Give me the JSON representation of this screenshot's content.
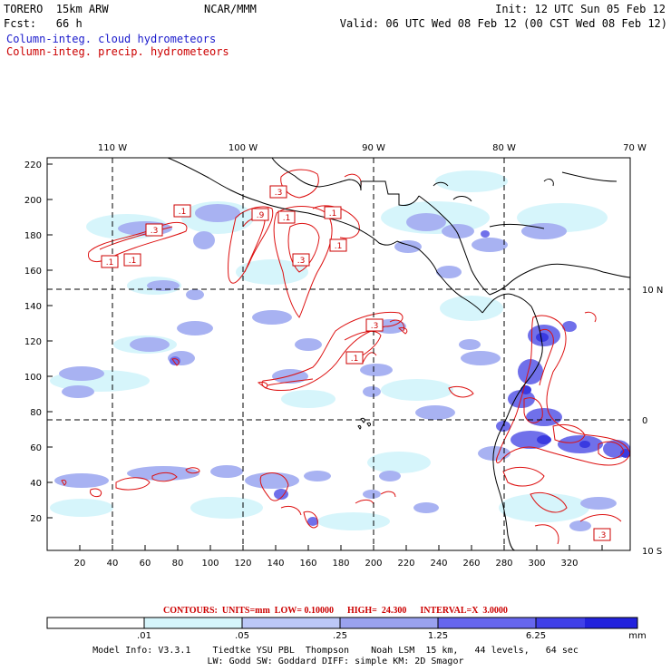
{
  "header": {
    "model": "TORERO  15km ARW",
    "org": "NCAR/MMM",
    "init": "Init: 12 UTC Sun 05 Feb 12",
    "fcst": "Fcst:   66 h",
    "valid": "Valid: 06 UTC Wed 08 Feb 12 (00 CST Wed 08 Feb 12)",
    "field_cloud": "Column-integ. cloud hydrometeors",
    "field_precip": "Column-integ. precip. hydrometeors"
  },
  "map": {
    "top_lon_labels": [
      "110 W",
      "100 W",
      "90 W",
      "80 W",
      "70 W"
    ],
    "right_lat_labels": [
      "10 N",
      "0",
      "10 S"
    ],
    "left_ticks": [
      "220",
      "200",
      "180",
      "160",
      "140",
      "120",
      "100",
      "80",
      "60",
      "40",
      "20"
    ],
    "bottom_ticks": [
      "20",
      "40",
      "60",
      "80",
      "100",
      "120",
      "140",
      "160",
      "180",
      "200",
      "220",
      "240",
      "260",
      "280",
      "300",
      "320"
    ],
    "contour_labels": [
      ".1",
      ".3",
      ".1",
      ".1",
      ".3",
      ".9",
      ".1",
      ".1",
      ".1",
      ".3",
      ".3",
      ".1",
      ".3"
    ]
  },
  "contours": {
    "text": "CONTOURS:  UNITS=mm  LOW= 0.10000      HIGH=  24.300      INTERVAL=X  3.0000"
  },
  "colorbar": {
    "labels": [
      ".01",
      ".05",
      ".25",
      "1.25",
      "6.25"
    ],
    "units": "mm",
    "colors": [
      "#ffffff",
      "#d6f5fb",
      "#bcc8f7",
      "#9aa2ef",
      "#6666ee",
      "#4040e8",
      "#2222dd"
    ]
  },
  "model_info": {
    "line1": "Model Info: V3.3.1    Tiedtke YSU PBL  Thompson    Noah LSM  15 km,   44 levels,   64 sec",
    "line2": "LW: Godd SW: Goddard DIFF: simple KM: 2D Smagor"
  }
}
